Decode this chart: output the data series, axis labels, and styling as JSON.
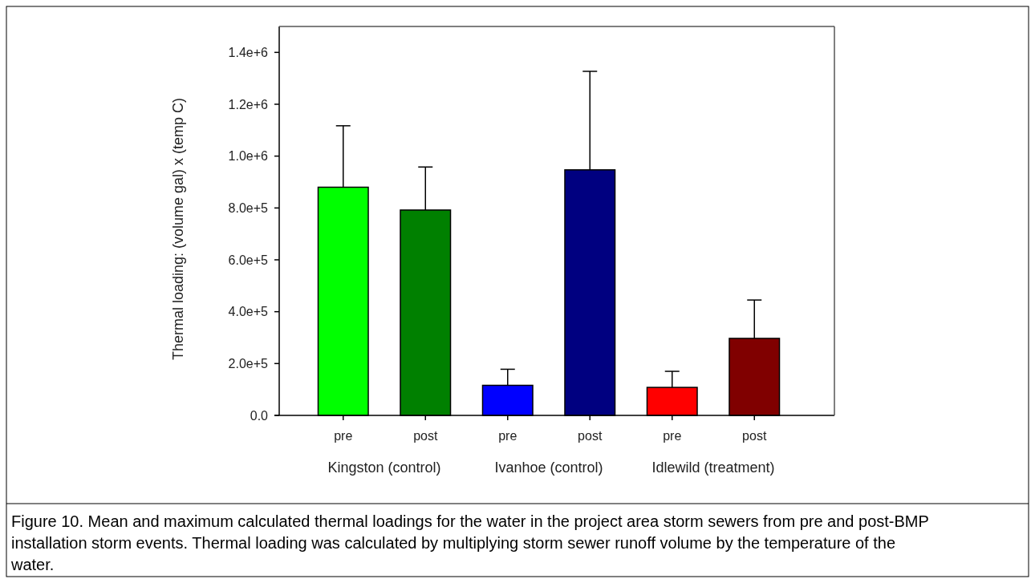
{
  "chart_data": {
    "type": "bar",
    "ylabel": "Thermal loading: (volume gal) x (temp C)",
    "categories": [
      "pre",
      "post",
      "pre",
      "post",
      "pre",
      "post"
    ],
    "values": [
      880000,
      792000,
      116000,
      947000,
      108000,
      297000
    ],
    "errors": [
      237000,
      166000,
      62000,
      380000,
      62000,
      148000
    ],
    "colors": [
      "#00ff00",
      "#008000",
      "#0000ff",
      "#000080",
      "#ff0000",
      "#800000"
    ],
    "ylim": [
      0,
      1500000
    ],
    "yticks": [
      {
        "value": 0,
        "label": "0.0"
      },
      {
        "value": 200000,
        "label": "2.0e+5"
      },
      {
        "value": 400000,
        "label": "4.0e+5"
      },
      {
        "value": 600000,
        "label": "6.0e+5"
      },
      {
        "value": 800000,
        "label": "8.0e+5"
      },
      {
        "value": 1000000,
        "label": "1.0e+6"
      },
      {
        "value": 1200000,
        "label": "1.2e+6"
      },
      {
        "value": 1400000,
        "label": "1.4e+6"
      }
    ],
    "grid": false,
    "annotations": [
      "Kingston (control)",
      "Ivanhoe (control)",
      "Idlewild (treatment)",
      "Figure 10. Mean and maximum calculated thermal loadings for the water in the project area storm sewers from pre and post-BMP installation storm events. Thermal loading was calculated by multiplying storm sewer runoff volume by the temperature of the water."
    ]
  }
}
